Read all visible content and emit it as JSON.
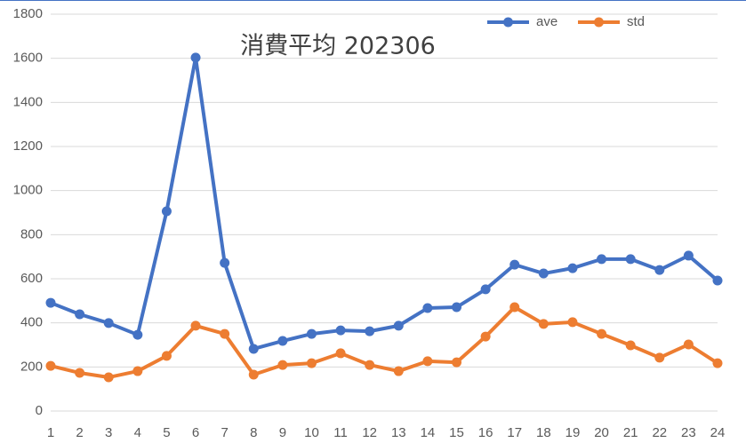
{
  "chart_data": {
    "type": "line",
    "title": "消費平均 202306",
    "categories": [
      1,
      2,
      3,
      4,
      5,
      6,
      7,
      8,
      9,
      10,
      11,
      12,
      13,
      14,
      15,
      16,
      17,
      18,
      19,
      20,
      21,
      22,
      23,
      24
    ],
    "series": [
      {
        "name": "ave",
        "color": "#4472c4",
        "values": [
          491,
          439,
          399,
          346,
          906,
          1603,
          672,
          282,
          318,
          350,
          366,
          362,
          387,
          467,
          471,
          552,
          664,
          624,
          648,
          689,
          689,
          640,
          705,
          592
        ]
      },
      {
        "name": "std",
        "color": "#ed7d31",
        "values": [
          205,
          173,
          153,
          181,
          250,
          387,
          350,
          165,
          209,
          217,
          262,
          209,
          181,
          226,
          221,
          338,
          471,
          395,
          403,
          350,
          298,
          242,
          302,
          217
        ]
      }
    ],
    "ylim": [
      0,
      1800
    ],
    "yticks": [
      0,
      200,
      400,
      600,
      800,
      1000,
      1200,
      1400,
      1600,
      1800
    ],
    "grid": true,
    "legend": "top-right"
  }
}
